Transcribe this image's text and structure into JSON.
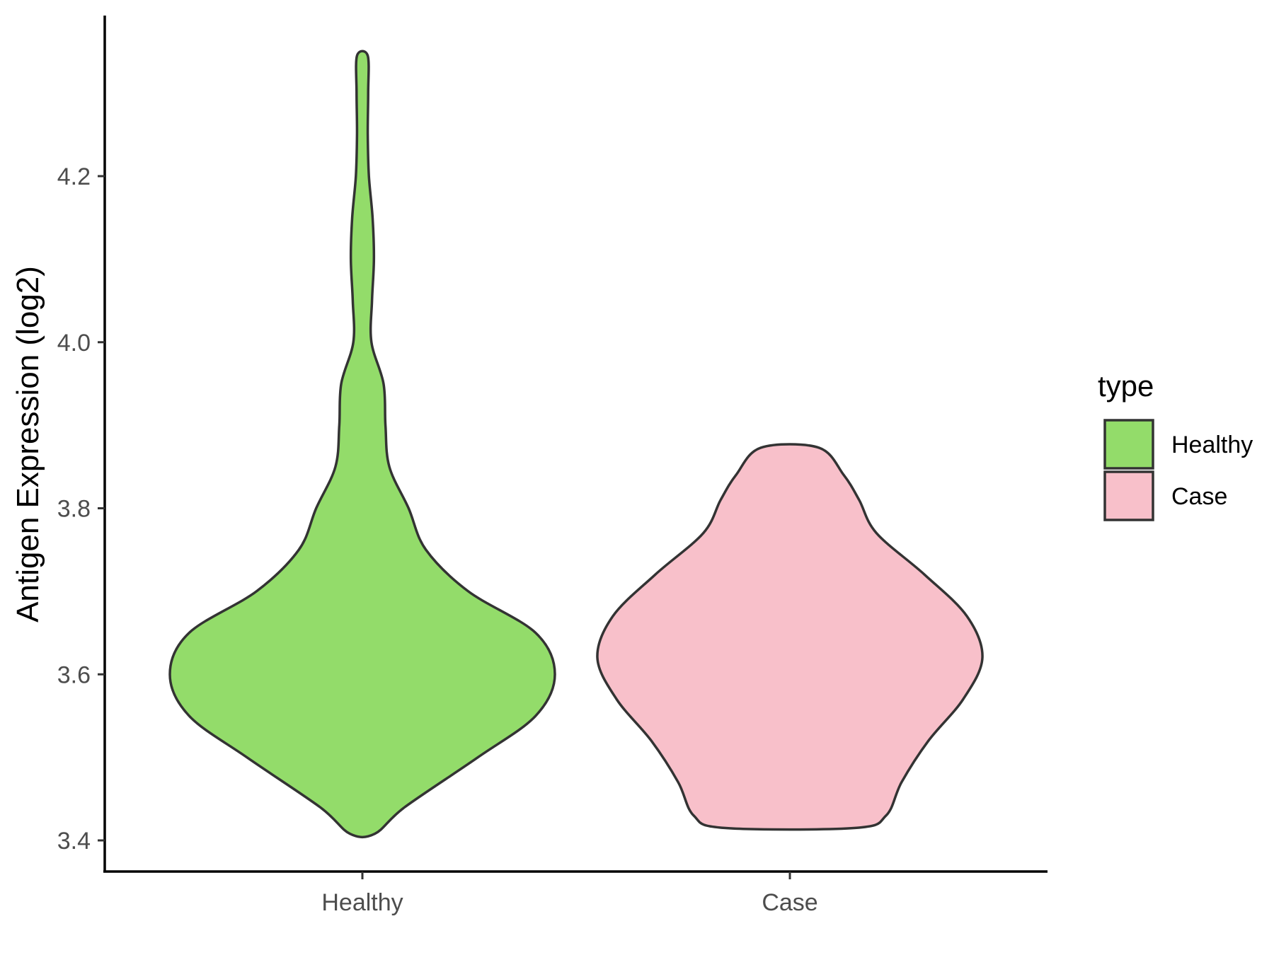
{
  "chart_data": {
    "type": "violin",
    "title": "",
    "xlabel": "",
    "ylabel": "Antigen Expression (log2)",
    "ylim": [
      3.36,
      4.39
    ],
    "y_ticks": [
      "3.4",
      "3.6",
      "3.8",
      "4.0",
      "4.2"
    ],
    "y_tick_values": [
      3.4,
      3.6,
      3.8,
      4.0,
      4.2
    ],
    "categories": [
      "Healthy",
      "Case"
    ],
    "legend": {
      "title": "type",
      "position": "right",
      "entries": [
        "Healthy",
        "Case"
      ]
    },
    "grid": false,
    "series": [
      {
        "name": "Healthy",
        "color": "#93dc6a",
        "min": 3.408,
        "max": 4.345,
        "density_profile": [
          {
            "y": 3.408,
            "half_width": 0.065
          },
          {
            "y": 3.44,
            "half_width": 0.22
          },
          {
            "y": 3.5,
            "half_width": 0.6
          },
          {
            "y": 3.55,
            "half_width": 0.9
          },
          {
            "y": 3.6,
            "half_width": 1.0
          },
          {
            "y": 3.65,
            "half_width": 0.9
          },
          {
            "y": 3.7,
            "half_width": 0.55
          },
          {
            "y": 3.75,
            "half_width": 0.33
          },
          {
            "y": 3.8,
            "half_width": 0.24
          },
          {
            "y": 3.85,
            "half_width": 0.14
          },
          {
            "y": 3.9,
            "half_width": 0.12
          },
          {
            "y": 3.95,
            "half_width": 0.11
          },
          {
            "y": 4.0,
            "half_width": 0.047
          },
          {
            "y": 4.05,
            "half_width": 0.05
          },
          {
            "y": 4.1,
            "half_width": 0.06
          },
          {
            "y": 4.15,
            "half_width": 0.053
          },
          {
            "y": 4.2,
            "half_width": 0.034
          },
          {
            "y": 4.25,
            "half_width": 0.028
          },
          {
            "y": 4.3,
            "half_width": 0.03
          },
          {
            "y": 4.345,
            "half_width": 0.028
          }
        ]
      },
      {
        "name": "Case",
        "color": "#f8c0ca",
        "min": 3.415,
        "max": 3.873,
        "density_profile": [
          {
            "y": 3.415,
            "half_width": 0.34
          },
          {
            "y": 3.43,
            "half_width": 0.5
          },
          {
            "y": 3.47,
            "half_width": 0.58
          },
          {
            "y": 3.52,
            "half_width": 0.72
          },
          {
            "y": 3.57,
            "half_width": 0.9
          },
          {
            "y": 3.62,
            "half_width": 1.0
          },
          {
            "y": 3.67,
            "half_width": 0.92
          },
          {
            "y": 3.72,
            "half_width": 0.7
          },
          {
            "y": 3.77,
            "half_width": 0.45
          },
          {
            "y": 3.81,
            "half_width": 0.36
          },
          {
            "y": 3.84,
            "half_width": 0.28
          },
          {
            "y": 3.873,
            "half_width": 0.15
          }
        ]
      }
    ]
  }
}
